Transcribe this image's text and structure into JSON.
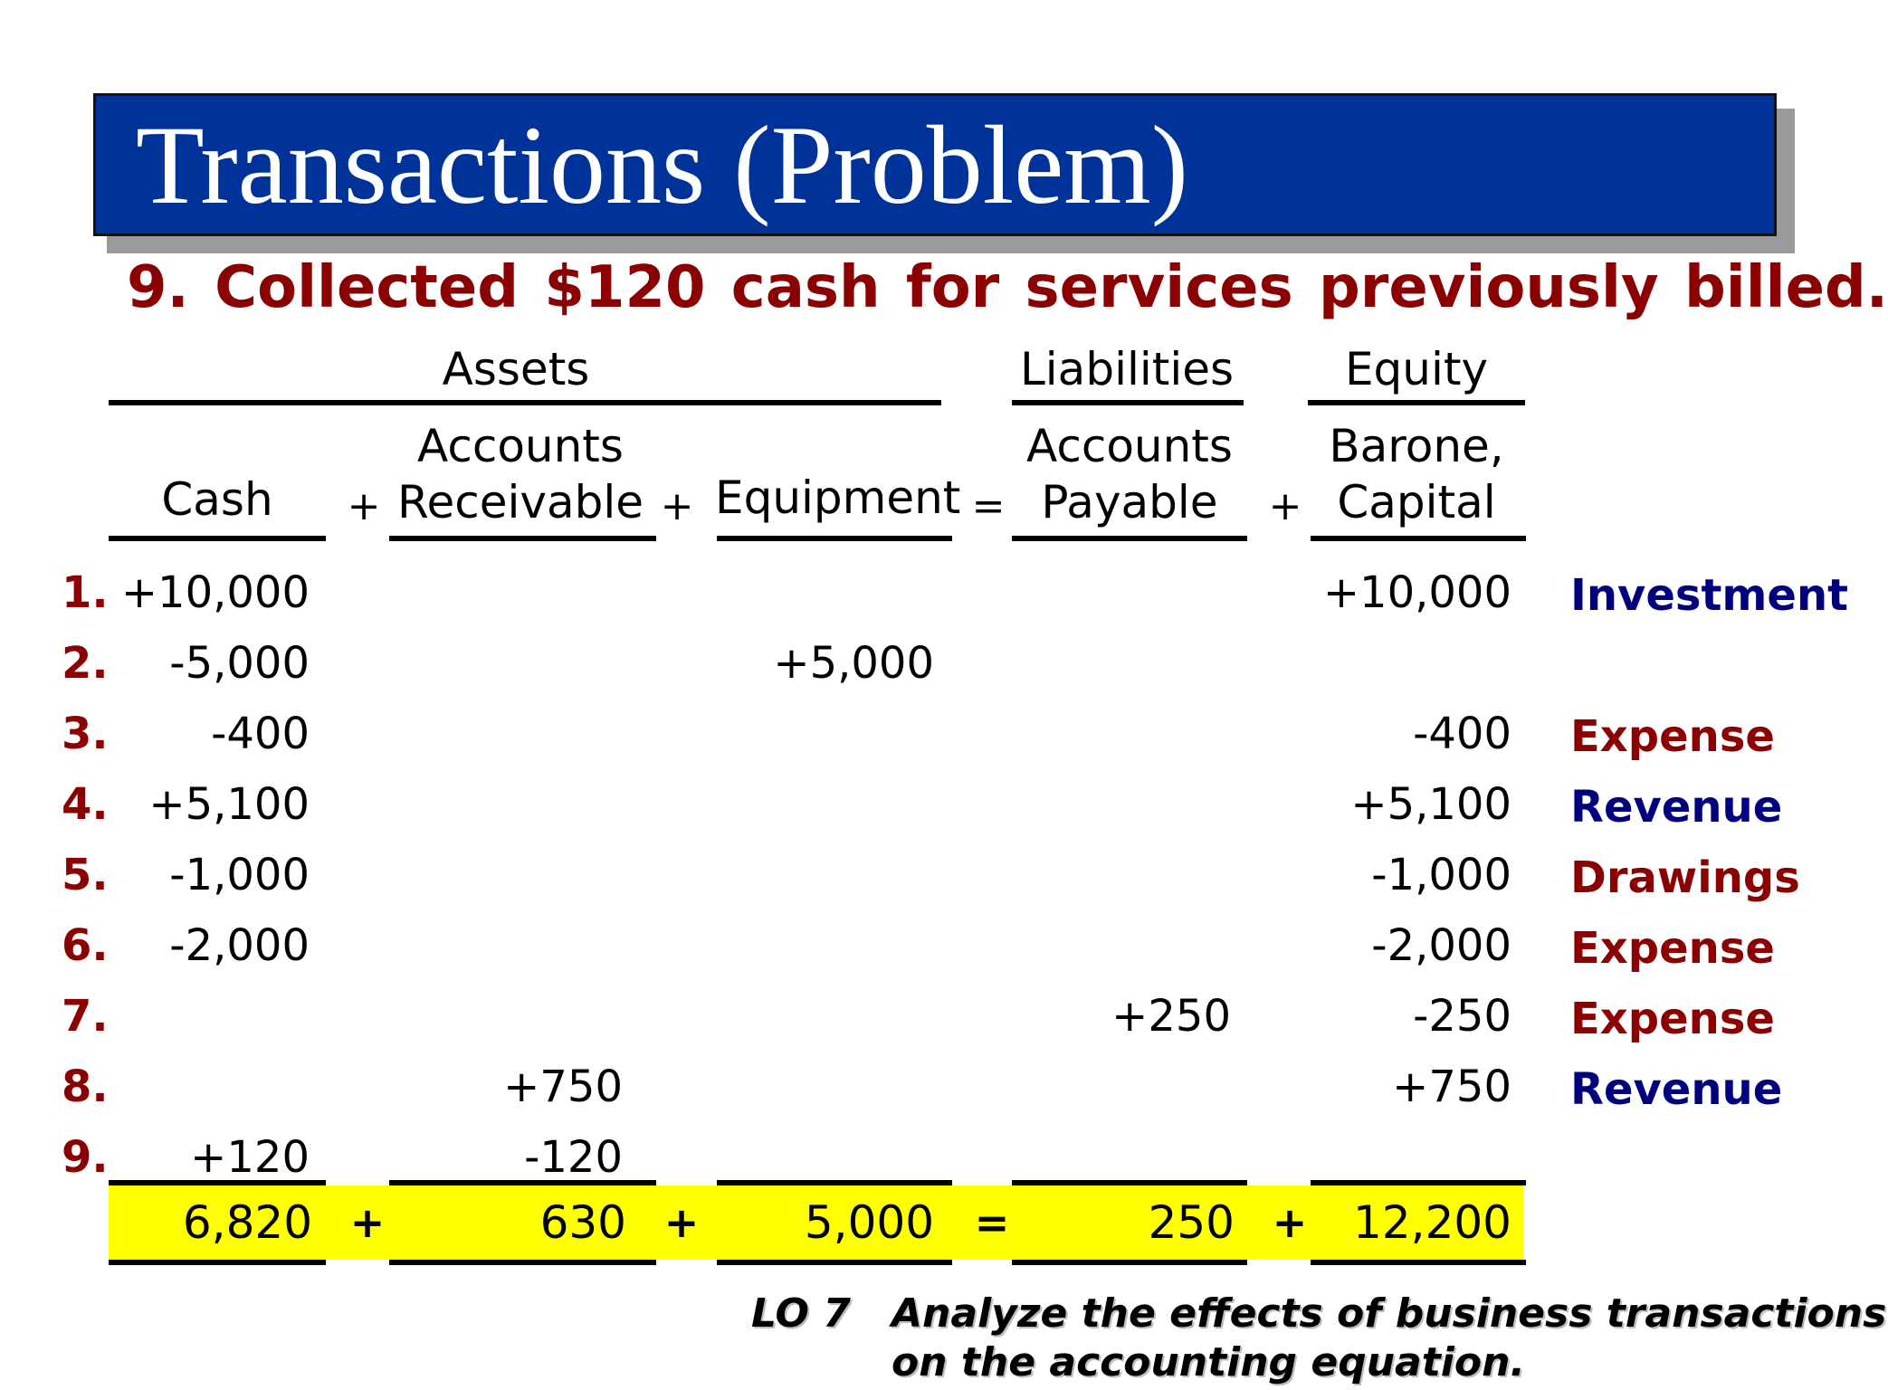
{
  "title": "Transactions (Problem)",
  "problem": "9.  Collected $120 cash for services previously billed.",
  "groups": {
    "assets": "Assets",
    "liabilities": "Liabilities",
    "equity": "Equity"
  },
  "columns": {
    "cash": "Cash",
    "ar_line1": "Accounts",
    "ar_line2": "Receivable",
    "equipment": "Equipment",
    "ap_line1": "Accounts",
    "ap_line2": "Payable",
    "cap_line1": "Barone,",
    "cap_line2": "Capital"
  },
  "operators": {
    "plus": "+",
    "equals": "="
  },
  "rows": [
    {
      "num": "1.",
      "cash": "+10,000",
      "ar": "",
      "equip": "",
      "ap": "",
      "capital": "+10,000",
      "tag": "Investment",
      "tag_color": "#00007f"
    },
    {
      "num": "2.",
      "cash": "-5,000",
      "ar": "",
      "equip": "+5,000",
      "ap": "",
      "capital": "",
      "tag": "",
      "tag_color": ""
    },
    {
      "num": "3.",
      "cash": "-400",
      "ar": "",
      "equip": "",
      "ap": "",
      "capital": "-400",
      "tag": "Expense",
      "tag_color": "#8b0000"
    },
    {
      "num": "4.",
      "cash": "+5,100",
      "ar": "",
      "equip": "",
      "ap": "",
      "capital": "+5,100",
      "tag": "Revenue",
      "tag_color": "#00007f"
    },
    {
      "num": "5.",
      "cash": "-1,000",
      "ar": "",
      "equip": "",
      "ap": "",
      "capital": "-1,000",
      "tag": "Drawings",
      "tag_color": "#8b0000"
    },
    {
      "num": "6.",
      "cash": "-2,000",
      "ar": "",
      "equip": "",
      "ap": "",
      "capital": "-2,000",
      "tag": "Expense",
      "tag_color": "#8b0000"
    },
    {
      "num": "7.",
      "cash": "",
      "ar": "",
      "equip": "",
      "ap": "+250",
      "capital": "-250",
      "tag": "Expense",
      "tag_color": "#8b0000"
    },
    {
      "num": "8.",
      "cash": "",
      "ar": "+750",
      "equip": "",
      "ap": "",
      "capital": "+750",
      "tag": "Revenue",
      "tag_color": "#00007f"
    },
    {
      "num": "9.",
      "cash": "+120",
      "ar": "-120",
      "equip": "",
      "ap": "",
      "capital": "",
      "tag": "",
      "tag_color": ""
    }
  ],
  "totals": {
    "cash": "6,820",
    "ar": "630",
    "equip": "5,000",
    "ap": "250",
    "capital": "12,200"
  },
  "footer": {
    "lo": "LO 7",
    "line1": "Analyze the effects of business transactions",
    "line2": "on the accounting equation."
  },
  "colors": {
    "banner": "#003399",
    "highlight": "#ffff00",
    "dark_red": "#8b0000",
    "navy": "#00007f"
  }
}
